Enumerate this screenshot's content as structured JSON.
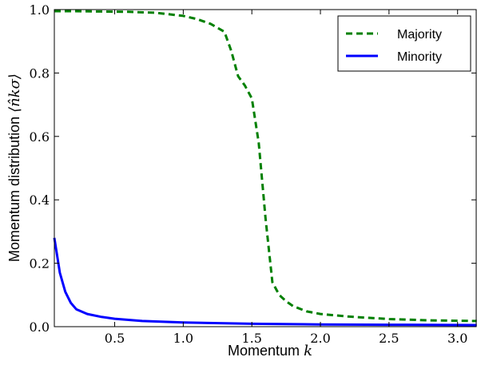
{
  "chart_data": {
    "type": "line",
    "title": "",
    "xlabel": "Momentum",
    "xlabel_symbol": "k",
    "ylabel": "Momentum distribution",
    "ylabel_symbol": "⟨n̂kσ⟩",
    "xlim": [
      0.06,
      3.14159
    ],
    "ylim": [
      0.0,
      1.0
    ],
    "xticks": [
      0.5,
      1.0,
      1.5,
      2.0,
      2.5,
      3.0
    ],
    "xtick_labels": [
      "0.5",
      "1.0",
      "1.5",
      "2.0",
      "2.5",
      "3.0"
    ],
    "yticks": [
      0.0,
      0.2,
      0.4,
      0.6,
      0.8,
      1.0
    ],
    "ytick_labels": [
      "0.0",
      "0.2",
      "0.4",
      "0.6",
      "0.8",
      "1.0"
    ],
    "grid": false,
    "legend_position": "top-right",
    "series": [
      {
        "name": "Majority",
        "color": "#008000",
        "style": "dashed",
        "x": [
          0.06,
          0.2,
          0.4,
          0.6,
          0.8,
          1.0,
          1.1,
          1.2,
          1.3,
          1.35,
          1.4,
          1.45,
          1.5,
          1.55,
          1.6,
          1.65,
          1.7,
          1.75,
          1.8,
          1.9,
          2.0,
          2.2,
          2.5,
          2.8,
          3.14
        ],
        "y": [
          0.995,
          0.995,
          0.994,
          0.993,
          0.99,
          0.98,
          0.97,
          0.955,
          0.93,
          0.87,
          0.79,
          0.76,
          0.72,
          0.58,
          0.34,
          0.14,
          0.1,
          0.08,
          0.065,
          0.048,
          0.04,
          0.032,
          0.024,
          0.02,
          0.018
        ]
      },
      {
        "name": "Minority",
        "color": "#0000ff",
        "style": "solid",
        "x": [
          0.06,
          0.1,
          0.14,
          0.18,
          0.22,
          0.3,
          0.4,
          0.5,
          0.7,
          1.0,
          1.5,
          2.0,
          2.5,
          3.14
        ],
        "y": [
          0.28,
          0.17,
          0.11,
          0.075,
          0.055,
          0.04,
          0.031,
          0.025,
          0.018,
          0.013,
          0.009,
          0.007,
          0.006,
          0.005
        ]
      }
    ]
  }
}
